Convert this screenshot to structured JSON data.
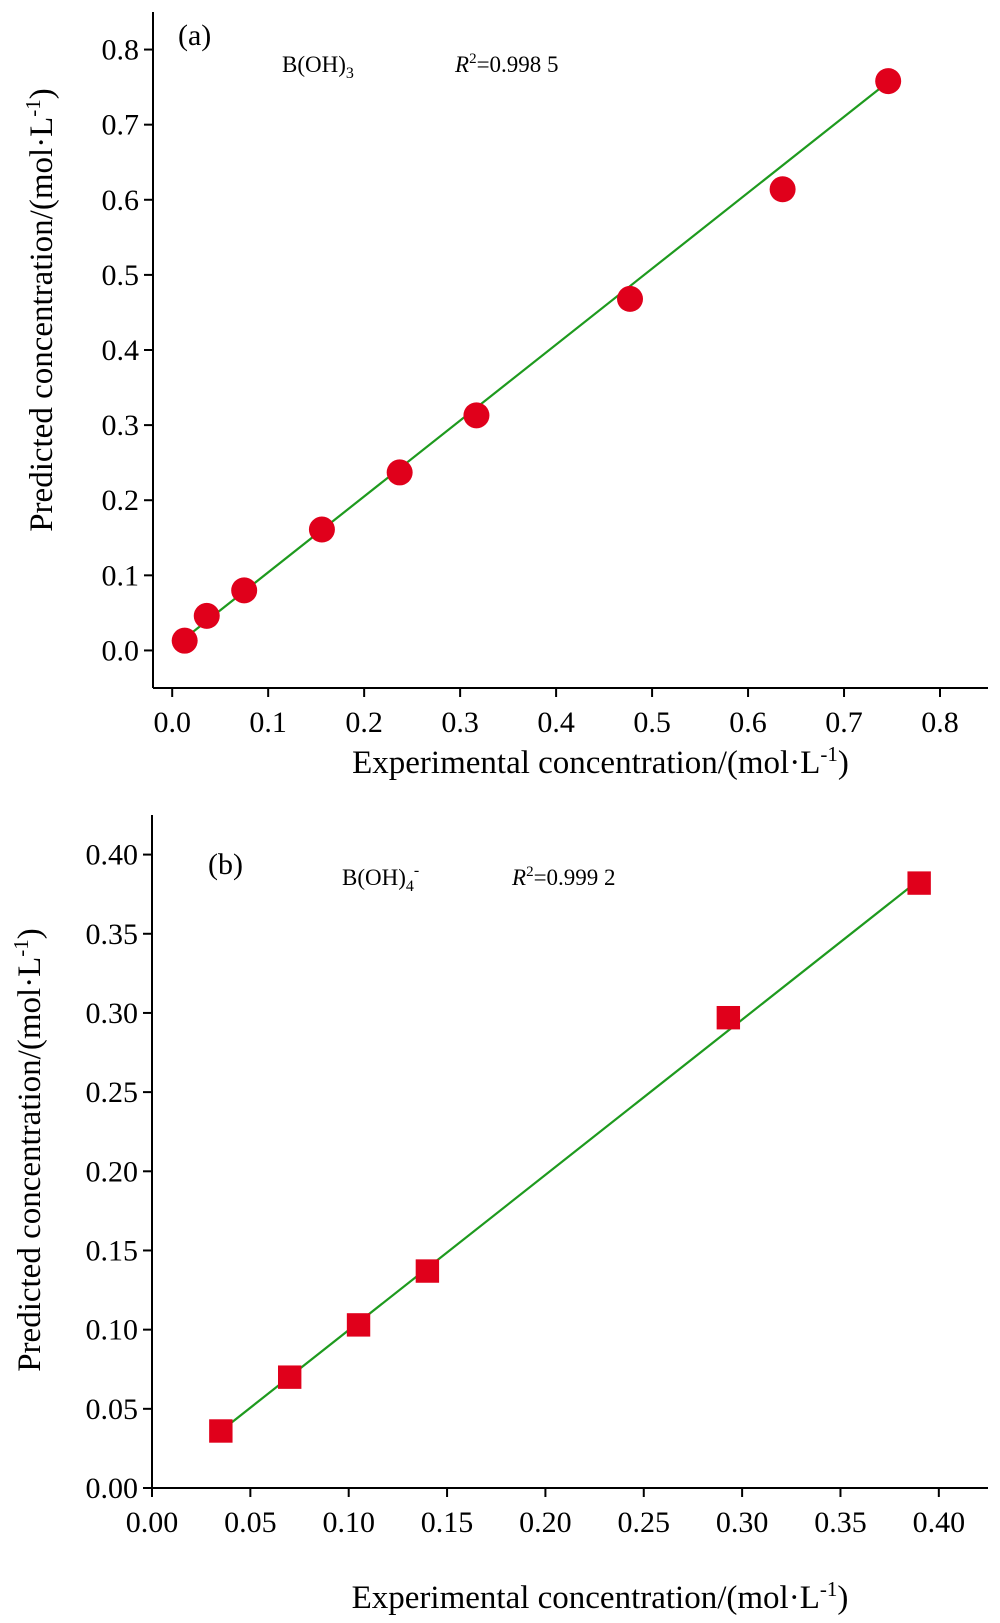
{
  "colors": {
    "marker": "#E0001B",
    "fit_line": "#1E9A1E",
    "axis": "#000000"
  },
  "chart_data": [
    {
      "type": "scatter",
      "panel_label": "(a)",
      "species": {
        "base": "B(OH)",
        "sub": "3",
        "sup": ""
      },
      "r2": {
        "symbol": "R",
        "exp": "2",
        "value": "=0.998 5"
      },
      "marker": "circle",
      "xlabel": {
        "base": "Experimental concentration/(mol·L",
        "sup": "-1",
        "tail": ")"
      },
      "ylabel": {
        "base": "Predicted concentration/(mol·L",
        "sup": "-1",
        "tail": ")"
      },
      "xlim": [
        -0.02,
        0.85
      ],
      "ylim": [
        -0.05,
        0.85
      ],
      "xticks": [
        "0.0",
        "0.1",
        "0.2",
        "0.3",
        "0.4",
        "0.5",
        "0.6",
        "0.7",
        "0.8"
      ],
      "yticks": [
        "0.0",
        "0.1",
        "0.2",
        "0.3",
        "0.4",
        "0.5",
        "0.6",
        "0.7",
        "0.8"
      ],
      "x": [
        0.013,
        0.036,
        0.075,
        0.156,
        0.237,
        0.317,
        0.477,
        0.636,
        0.746
      ],
      "y": [
        0.013,
        0.046,
        0.08,
        0.161,
        0.237,
        0.313,
        0.468,
        0.614,
        0.758
      ],
      "fit": {
        "x": [
          0.013,
          0.746
        ],
        "y": [
          0.016,
          0.757
        ]
      }
    },
    {
      "type": "scatter",
      "panel_label": "(b)",
      "species": {
        "base": "B(OH)",
        "sub": "4",
        "sup": "-"
      },
      "r2": {
        "symbol": "R",
        "exp": "2",
        "value": "=0.999 2"
      },
      "marker": "square",
      "xlabel": {
        "base": "Experimental concentration/(mol·L",
        "sup": "-1",
        "tail": ")"
      },
      "ylabel": {
        "base": "Predicted concentration/(mol·L",
        "sup": "-1",
        "tail": ")"
      },
      "xlim": [
        0.0,
        0.425
      ],
      "ylim": [
        0.0,
        0.425
      ],
      "xticks": [
        "0.00",
        "0.05",
        "0.10",
        "0.15",
        "0.20",
        "0.25",
        "0.30",
        "0.35",
        "0.40"
      ],
      "yticks": [
        "0.00",
        "0.05",
        "0.10",
        "0.15",
        "0.20",
        "0.25",
        "0.30",
        "0.35",
        "0.40"
      ],
      "x": [
        0.035,
        0.07,
        0.105,
        0.14,
        0.293,
        0.39
      ],
      "y": [
        0.036,
        0.07,
        0.103,
        0.137,
        0.297,
        0.382
      ],
      "fit": {
        "x": [
          0.035,
          0.39
        ],
        "y": [
          0.036,
          0.384
        ]
      }
    }
  ]
}
